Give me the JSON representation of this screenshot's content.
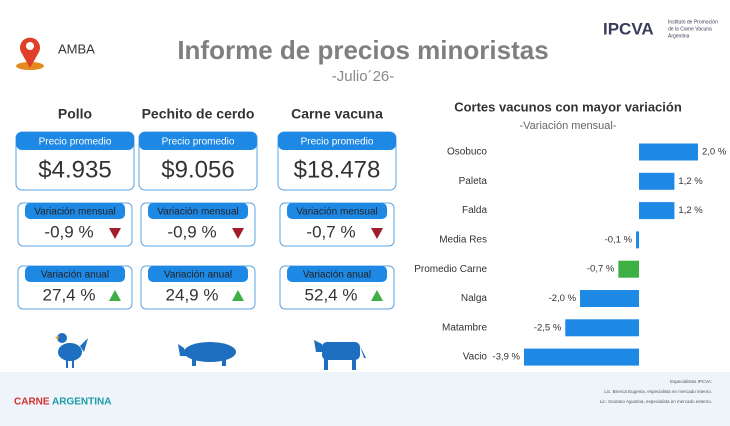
{
  "header": {
    "region": "AMBA",
    "title": "Informe de precios minoristas",
    "subtitle": "-Julio´26-",
    "logo": "IPCVA",
    "logo_text": [
      "Instituto de Promoción",
      "de la Carne Vacuna",
      "Argentina"
    ]
  },
  "products": [
    {
      "name": "Pollo",
      "price_label": "Precio promedio",
      "price": "$4.935",
      "monthly_label": "Variación mensual",
      "monthly": "-0,9 %",
      "monthly_trend": "down",
      "annual_label": "Variación anual",
      "annual": "27,4 %",
      "annual_trend": "up"
    },
    {
      "name": "Pechito de cerdo",
      "price_label": "Precio promedio",
      "price": "$9.056",
      "monthly_label": "Variación mensual",
      "monthly": "-0,9 %",
      "monthly_trend": "down",
      "annual_label": "Variación anual",
      "annual": "24,9 %",
      "annual_trend": "up"
    },
    {
      "name": "Carne vacuna",
      "price_label": "Precio promedio",
      "price": "$18.478",
      "monthly_label": "Variación mensual",
      "monthly": "-0,7 %",
      "monthly_trend": "down",
      "annual_label": "Variación anual",
      "annual": "52,4 %",
      "annual_trend": "up"
    }
  ],
  "chart_data": {
    "type": "bar",
    "orientation": "horizontal",
    "title": "Cortes vacunos con mayor variación",
    "subtitle": "-Variación mensual-",
    "categories": [
      "Osobuco",
      "Paleta",
      "Falda",
      "Media Res",
      "Promedio Carne",
      "Nalga",
      "Matambre",
      "Vacio"
    ],
    "values": [
      2.0,
      1.2,
      1.2,
      -0.1,
      -0.7,
      -2.0,
      -2.5,
      -3.9
    ],
    "value_labels": [
      "2,0 %",
      "1,2 %",
      "1,2 %",
      "-0,1 %",
      "-0,7 %",
      "-2,0 %",
      "-2,5 %",
      "-3,9 %"
    ],
    "colors": [
      "#1e88e5",
      "#1e88e5",
      "#1e88e5",
      "#1e88e5",
      "#3cb043",
      "#1e88e5",
      "#1e88e5",
      "#1e88e5"
    ]
  },
  "footer": {
    "brand": [
      "CARNE",
      "ARGENTINA"
    ],
    "notes": [
      "Especialistas IPCVA:",
      "Lic. Brenca Eugenia, especialista en mercado interno.",
      "Lic. Scarano Agustina, especialista en mercado externo."
    ]
  }
}
